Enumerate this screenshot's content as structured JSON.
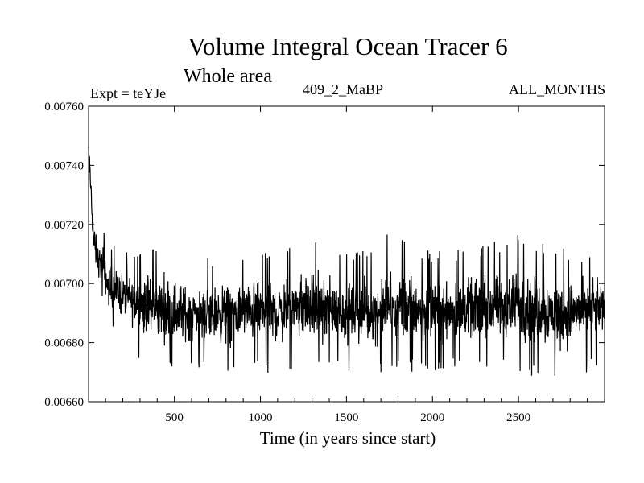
{
  "chart_data": {
    "type": "line",
    "title": "Volume Integral Ocean Tracer 6",
    "subtitle": "Whole area",
    "expt_label": "Expt = teYJe",
    "run_label": "409_2_MaBP",
    "months_label": "ALL_MONTHS",
    "xlabel": "Time (in years since start)",
    "ylabel": "",
    "xlim": [
      1,
      3000
    ],
    "ylim": [
      0.0066,
      0.0076
    ],
    "xticks": [
      500,
      1000,
      1500,
      2000,
      2500
    ],
    "xtick_labels": [
      "500",
      "1000",
      "1500",
      "2000",
      "2500"
    ],
    "yticks": [
      0.0066,
      0.0068,
      0.007,
      0.0072,
      0.0074,
      0.0076
    ],
    "ytick_labels": [
      "0.00660",
      "0.00680",
      "0.00700",
      "0.00720",
      "0.00740",
      "0.00760"
    ],
    "grid": false,
    "series": [
      {
        "name": "Volume Integral Ocean Tracer 6",
        "color": "#000000",
        "envelope": [
          {
            "x": 1,
            "mean": 0.00745,
            "min": 0.00728,
            "max": 0.00752
          },
          {
            "x": 15,
            "mean": 0.00732,
            "min": 0.0072,
            "max": 0.00742
          },
          {
            "x": 30,
            "mean": 0.00715,
            "min": 0.00703,
            "max": 0.00728
          },
          {
            "x": 50,
            "mean": 0.00708,
            "min": 0.00698,
            "max": 0.00722
          },
          {
            "x": 80,
            "mean": 0.00705,
            "min": 0.00695,
            "max": 0.00721
          },
          {
            "x": 120,
            "mean": 0.00698,
            "min": 0.00685,
            "max": 0.00715
          },
          {
            "x": 200,
            "mean": 0.00696,
            "min": 0.0068,
            "max": 0.00712
          },
          {
            "x": 300,
            "mean": 0.00693,
            "min": 0.00673,
            "max": 0.0071
          },
          {
            "x": 450,
            "mean": 0.0069,
            "min": 0.0067,
            "max": 0.00718
          },
          {
            "x": 600,
            "mean": 0.0069,
            "min": 0.0067,
            "max": 0.00708
          },
          {
            "x": 800,
            "mean": 0.0069,
            "min": 0.00668,
            "max": 0.0071
          },
          {
            "x": 1000,
            "mean": 0.00691,
            "min": 0.0067,
            "max": 0.00712
          },
          {
            "x": 1100,
            "mean": 0.0069,
            "min": 0.00667,
            "max": 0.0071
          },
          {
            "x": 1200,
            "mean": 0.00692,
            "min": 0.00672,
            "max": 0.00719
          },
          {
            "x": 1500,
            "mean": 0.0069,
            "min": 0.0067,
            "max": 0.0071
          },
          {
            "x": 1700,
            "mean": 0.0069,
            "min": 0.00669,
            "max": 0.00714
          },
          {
            "x": 1750,
            "mean": 0.00692,
            "min": 0.0067,
            "max": 0.00718
          },
          {
            "x": 2000,
            "mean": 0.00691,
            "min": 0.0067,
            "max": 0.00711
          },
          {
            "x": 2200,
            "mean": 0.00691,
            "min": 0.00671,
            "max": 0.00712
          },
          {
            "x": 2500,
            "mean": 0.00692,
            "min": 0.0067,
            "max": 0.00717
          },
          {
            "x": 2750,
            "mean": 0.0069,
            "min": 0.00664,
            "max": 0.00712
          },
          {
            "x": 3000,
            "mean": 0.00692,
            "min": 0.00674,
            "max": 0.0071
          }
        ]
      }
    ]
  }
}
